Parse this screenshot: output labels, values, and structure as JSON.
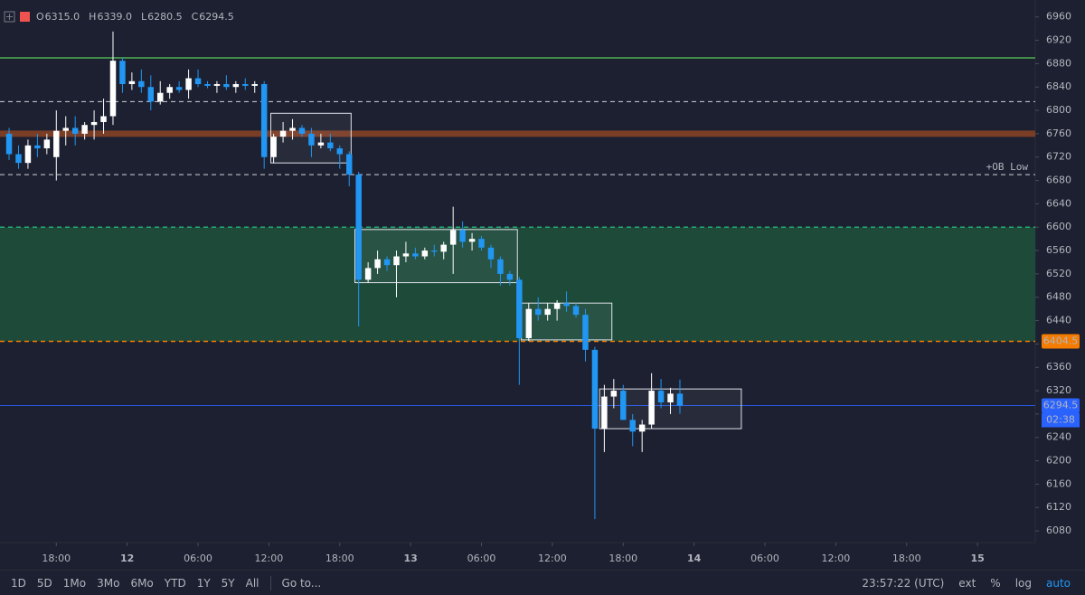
{
  "header": {
    "ohlc": [
      {
        "key": "O",
        "value": "6315.0"
      },
      {
        "key": "H",
        "value": "6339.0"
      },
      {
        "key": "L",
        "value": "6280.5"
      },
      {
        "key": "C",
        "value": "6294.5"
      }
    ]
  },
  "toolbar": {
    "ranges": [
      "1D",
      "5D",
      "1Mo",
      "3Mo",
      "6Mo",
      "YTD",
      "1Y",
      "5Y",
      "All"
    ],
    "goto": "Go to...",
    "clock": "23:57:22 (UTC)",
    "options": [
      "ext",
      "%",
      "log",
      "auto"
    ]
  },
  "chart_data": {
    "type": "candlestick",
    "up_color": "#ffffff",
    "down_color": "#2196f3",
    "open": [
      6760,
      6725,
      6710,
      6740,
      6735,
      6720,
      6765,
      6770,
      6760,
      6775,
      6780,
      6790,
      6885,
      6845,
      6850,
      6840,
      6815,
      6830,
      6840,
      6835,
      6855,
      6845,
      6842,
      6845,
      6840,
      6845,
      6842,
      6845,
      6720,
      6755,
      6765,
      6770,
      6760,
      6740,
      6745,
      6735,
      6725,
      6690,
      6510,
      6530,
      6545,
      6535,
      6550,
      6555,
      6550,
      6560,
      6558,
      6570,
      6595,
      6575,
      6580,
      6565,
      6545,
      6520,
      6510,
      6410,
      6460,
      6450,
      6460,
      6470,
      6465,
      6450,
      6390,
      6255,
      6310,
      6320,
      6270,
      6250,
      6262,
      6320,
      6300,
      6315
    ],
    "high": [
      6770,
      6740,
      6750,
      6760,
      6760,
      6800,
      6790,
      6790,
      6780,
      6800,
      6820,
      6935,
      6890,
      6865,
      6870,
      6860,
      6850,
      6845,
      6850,
      6870,
      6870,
      6850,
      6850,
      6860,
      6850,
      6855,
      6850,
      6850,
      6760,
      6780,
      6785,
      6775,
      6770,
      6760,
      6760,
      6740,
      6730,
      6695,
      6540,
      6560,
      6550,
      6560,
      6575,
      6565,
      6565,
      6570,
      6575,
      6635,
      6610,
      6590,
      6585,
      6570,
      6550,
      6525,
      6515,
      6470,
      6480,
      6470,
      6475,
      6490,
      6470,
      6460,
      6395,
      6330,
      6340,
      6330,
      6280,
      6270,
      6350,
      6340,
      6325,
      6339
    ],
    "low": [
      6715,
      6700,
      6700,
      6720,
      6725,
      6680,
      6740,
      6740,
      6750,
      6750,
      6760,
      6775,
      6830,
      6835,
      6830,
      6800,
      6810,
      6820,
      6830,
      6820,
      6840,
      6838,
      6830,
      6835,
      6830,
      6835,
      6830,
      6700,
      6710,
      6745,
      6750,
      6755,
      6720,
      6735,
      6730,
      6700,
      6670,
      6430,
      6505,
      6520,
      6525,
      6480,
      6540,
      6545,
      6545,
      6550,
      6545,
      6520,
      6565,
      6560,
      6560,
      6530,
      6500,
      6500,
      6330,
      6405,
      6440,
      6440,
      6440,
      6455,
      6445,
      6370,
      6100,
      6215,
      6290,
      6270,
      6225,
      6215,
      6255,
      6290,
      6280,
      6280.5
    ],
    "close": [
      6725,
      6710,
      6740,
      6735,
      6750,
      6765,
      6770,
      6760,
      6775,
      6780,
      6790,
      6885,
      6845,
      6850,
      6840,
      6815,
      6830,
      6840,
      6835,
      6855,
      6845,
      6842,
      6845,
      6840,
      6845,
      6842,
      6845,
      6720,
      6755,
      6765,
      6770,
      6760,
      6740,
      6745,
      6735,
      6725,
      6690,
      6510,
      6530,
      6545,
      6535,
      6550,
      6555,
      6550,
      6560,
      6558,
      6570,
      6595,
      6575,
      6580,
      6565,
      6545,
      6520,
      6510,
      6410,
      6460,
      6450,
      6460,
      6470,
      6465,
      6450,
      6390,
      6255,
      6310,
      6320,
      6270,
      6250,
      6262,
      6320,
      6300,
      6315,
      6294.5
    ],
    "xlim": [
      -0.96,
      108.61
    ],
    "xticks": [
      {
        "value": 5,
        "label": "18:00"
      },
      {
        "value": 12.5,
        "label": "12"
      },
      {
        "value": 20,
        "label": "06:00"
      },
      {
        "value": 27.5,
        "label": "12:00"
      },
      {
        "value": 35,
        "label": "18:00"
      },
      {
        "value": 42.5,
        "label": "13"
      },
      {
        "value": 50,
        "label": "06:00"
      },
      {
        "value": 57.5,
        "label": "12:00"
      },
      {
        "value": 65,
        "label": "18:00"
      },
      {
        "value": 72.5,
        "label": "14"
      },
      {
        "value": 80,
        "label": "06:00"
      },
      {
        "value": 87.5,
        "label": "12:00"
      },
      {
        "value": 95,
        "label": "18:00"
      },
      {
        "value": 102.5,
        "label": "15"
      }
    ],
    "ylim": [
      6060,
      6989
    ],
    "yticks": [
      6080,
      6120,
      6160,
      6200,
      6240,
      6280,
      6320,
      6360,
      6400,
      6440,
      6480,
      6520,
      6560,
      6600,
      6640,
      6680,
      6720,
      6760,
      6800,
      6840,
      6880,
      6920,
      6960
    ],
    "zone": {
      "from": 6404.5,
      "to": 6600,
      "color": "#1e4a3a"
    },
    "levels": [
      {
        "value": 6890,
        "color": "#4caf50",
        "style": "solid",
        "width": 1.5
      },
      {
        "value": 6815,
        "color": "#d1d4dc",
        "style": "dashed",
        "width": 1
      },
      {
        "value": 6760,
        "color": "#7a3d26",
        "style": "solid",
        "width": 7
      },
      {
        "value": 6690,
        "color": "#d1d4dc",
        "style": "dashed",
        "width": 1,
        "label": "+OB Low"
      },
      {
        "value": 6600,
        "color": "#22ab74",
        "style": "dashed",
        "width": 1.5
      },
      {
        "value": 6404.5,
        "color": "#f57c00",
        "style": "dashed",
        "width": 1.5
      },
      {
        "value": 6294.5,
        "color": "#2962ff",
        "style": "solid",
        "width": 0.8
      }
    ],
    "boxes": [
      {
        "x": [
          27.7,
          36.2
        ],
        "y": [
          6710,
          6795
        ]
      },
      {
        "x": [
          36.6,
          53.8
        ],
        "y": [
          6505,
          6596
        ]
      },
      {
        "x": [
          54.2,
          63.8
        ],
        "y": [
          6407,
          6470
        ]
      },
      {
        "x": [
          62.5,
          77.5
        ],
        "y": [
          6255,
          6323
        ]
      }
    ],
    "price_labels": [
      {
        "value": 6404.5,
        "label": "6404.5",
        "color": "#f57c00"
      },
      {
        "value": 6294.5,
        "label": "6294.5",
        "color": "#2962ff",
        "countdown": "02:38"
      }
    ]
  }
}
